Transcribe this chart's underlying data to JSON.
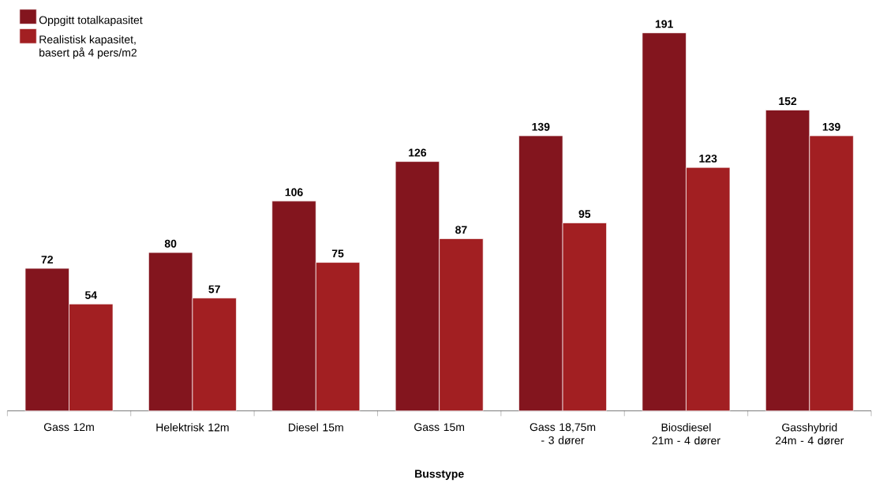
{
  "chart_data": {
    "type": "bar",
    "xlabel": "Busstype",
    "categories": [
      "Gass 12m",
      "Helektrisk 12m",
      "Diesel 15m",
      "Gass 15m",
      "Gass 18,75m - 3 dører",
      "Biosdiesel 21m - 4 dører",
      "Gasshybrid 24m - 4 dører"
    ],
    "series": [
      {
        "name": "Oppgitt totalkapasitet",
        "color": "#83151e",
        "values": [
          72,
          80,
          106,
          126,
          139,
          191,
          152
        ]
      },
      {
        "name": "Realistisk kapasitet, basert på 4 pers/m2",
        "color": "#a21f22",
        "values": [
          54,
          57,
          75,
          87,
          95,
          123,
          139
        ]
      }
    ],
    "data_labels": true,
    "legend": "top left"
  }
}
